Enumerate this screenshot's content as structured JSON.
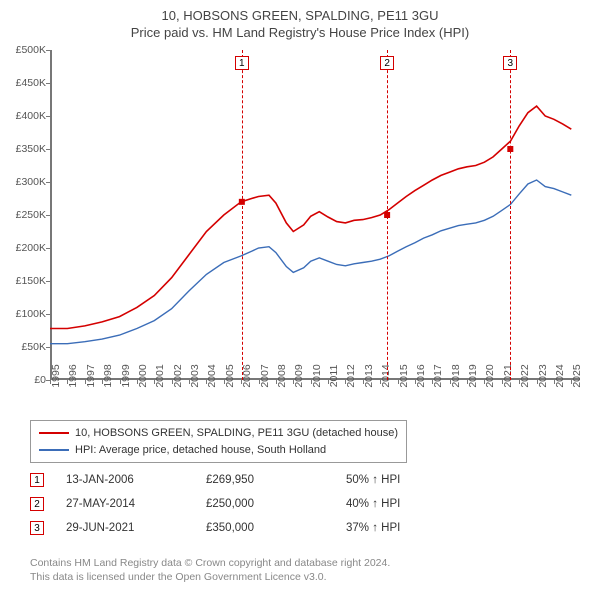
{
  "title_line1": "10, HOBSONS GREEN, SPALDING, PE11 3GU",
  "title_line2": "Price paid vs. HM Land Registry's House Price Index (HPI)",
  "chart": {
    "type": "line",
    "background_color": "#ffffff",
    "axis_color": "#777777",
    "x_years": [
      1995,
      1996,
      1997,
      1998,
      1999,
      2000,
      2001,
      2002,
      2003,
      2004,
      2005,
      2006,
      2007,
      2008,
      2009,
      2010,
      2011,
      2012,
      2013,
      2014,
      2015,
      2016,
      2017,
      2018,
      2019,
      2020,
      2021,
      2022,
      2023,
      2024,
      2025
    ],
    "xlim": [
      1995,
      2025.5
    ],
    "ylim": [
      0,
      500000
    ],
    "ytick_step": 50000,
    "ytick_labels": [
      "£0",
      "£50K",
      "£100K",
      "£150K",
      "£200K",
      "£250K",
      "£300K",
      "£350K",
      "£400K",
      "£450K",
      "£500K"
    ],
    "series": [
      {
        "name": "10, HOBSONS GREEN, SPALDING, PE11 3GU (detached house)",
        "color": "#d40000",
        "width": 1.6,
        "data": [
          [
            1995,
            78000
          ],
          [
            1996,
            78000
          ],
          [
            1997,
            82000
          ],
          [
            1998,
            88000
          ],
          [
            1999,
            96000
          ],
          [
            2000,
            110000
          ],
          [
            2001,
            128000
          ],
          [
            2002,
            155000
          ],
          [
            2003,
            190000
          ],
          [
            2004,
            225000
          ],
          [
            2005,
            250000
          ],
          [
            2006,
            269950
          ],
          [
            2006.6,
            275000
          ],
          [
            2007,
            278000
          ],
          [
            2007.6,
            280000
          ],
          [
            2008,
            268000
          ],
          [
            2008.6,
            238000
          ],
          [
            2009,
            225000
          ],
          [
            2009.6,
            235000
          ],
          [
            2010,
            248000
          ],
          [
            2010.5,
            255000
          ],
          [
            2011,
            247000
          ],
          [
            2011.5,
            240000
          ],
          [
            2012,
            238000
          ],
          [
            2012.5,
            242000
          ],
          [
            2013,
            243000
          ],
          [
            2013.5,
            246000
          ],
          [
            2014,
            250000
          ],
          [
            2014.5,
            258000
          ],
          [
            2015,
            268000
          ],
          [
            2015.5,
            278000
          ],
          [
            2016,
            287000
          ],
          [
            2016.5,
            295000
          ],
          [
            2017,
            303000
          ],
          [
            2017.5,
            310000
          ],
          [
            2018,
            315000
          ],
          [
            2018.5,
            320000
          ],
          [
            2019,
            323000
          ],
          [
            2019.5,
            325000
          ],
          [
            2020,
            330000
          ],
          [
            2020.5,
            338000
          ],
          [
            2021,
            350000
          ],
          [
            2021.5,
            362000
          ],
          [
            2022,
            385000
          ],
          [
            2022.5,
            405000
          ],
          [
            2023,
            415000
          ],
          [
            2023.5,
            400000
          ],
          [
            2024,
            395000
          ],
          [
            2024.5,
            388000
          ],
          [
            2025,
            380000
          ]
        ]
      },
      {
        "name": "HPI: Average price, detached house, South Holland",
        "color": "#3b6db8",
        "width": 1.4,
        "data": [
          [
            1995,
            55000
          ],
          [
            1996,
            55000
          ],
          [
            1997,
            58000
          ],
          [
            1998,
            62000
          ],
          [
            1999,
            68000
          ],
          [
            2000,
            78000
          ],
          [
            2001,
            90000
          ],
          [
            2002,
            108000
          ],
          [
            2003,
            135000
          ],
          [
            2004,
            160000
          ],
          [
            2005,
            178000
          ],
          [
            2006,
            188000
          ],
          [
            2006.6,
            195000
          ],
          [
            2007,
            200000
          ],
          [
            2007.6,
            202000
          ],
          [
            2008,
            193000
          ],
          [
            2008.6,
            172000
          ],
          [
            2009,
            163000
          ],
          [
            2009.6,
            170000
          ],
          [
            2010,
            180000
          ],
          [
            2010.5,
            185000
          ],
          [
            2011,
            180000
          ],
          [
            2011.5,
            175000
          ],
          [
            2012,
            173000
          ],
          [
            2012.5,
            176000
          ],
          [
            2013,
            178000
          ],
          [
            2013.5,
            180000
          ],
          [
            2014,
            183000
          ],
          [
            2014.5,
            188000
          ],
          [
            2015,
            195000
          ],
          [
            2015.5,
            202000
          ],
          [
            2016,
            208000
          ],
          [
            2016.5,
            215000
          ],
          [
            2017,
            220000
          ],
          [
            2017.5,
            226000
          ],
          [
            2018,
            230000
          ],
          [
            2018.5,
            234000
          ],
          [
            2019,
            236000
          ],
          [
            2019.5,
            238000
          ],
          [
            2020,
            242000
          ],
          [
            2020.5,
            248000
          ],
          [
            2021,
            257000
          ],
          [
            2021.5,
            266000
          ],
          [
            2022,
            282000
          ],
          [
            2022.5,
            297000
          ],
          [
            2023,
            303000
          ],
          [
            2023.5,
            293000
          ],
          [
            2024,
            290000
          ],
          [
            2024.5,
            285000
          ],
          [
            2025,
            280000
          ]
        ]
      }
    ],
    "markers": [
      {
        "num": "1",
        "year": 2006.04,
        "price": 269950,
        "color": "#d40000"
      },
      {
        "num": "2",
        "year": 2014.4,
        "price": 250000,
        "color": "#d40000"
      },
      {
        "num": "3",
        "year": 2021.49,
        "price": 350000,
        "color": "#d40000"
      }
    ]
  },
  "legend": {
    "rows": [
      {
        "color": "#d40000",
        "label": "10, HOBSONS GREEN, SPALDING, PE11 3GU (detached house)"
      },
      {
        "color": "#3b6db8",
        "label": "HPI: Average price, detached house, South Holland"
      }
    ]
  },
  "transactions": [
    {
      "num": "1",
      "date": "13-JAN-2006",
      "price": "£269,950",
      "diff": "50% ↑ HPI",
      "color": "#d40000"
    },
    {
      "num": "2",
      "date": "27-MAY-2014",
      "price": "£250,000",
      "diff": "40% ↑ HPI",
      "color": "#d40000"
    },
    {
      "num": "3",
      "date": "29-JUN-2021",
      "price": "£350,000",
      "diff": "37% ↑ HPI",
      "color": "#d40000"
    }
  ],
  "footer_line1": "Contains HM Land Registry data © Crown copyright and database right 2024.",
  "footer_line2": "This data is licensed under the Open Government Licence v3.0."
}
